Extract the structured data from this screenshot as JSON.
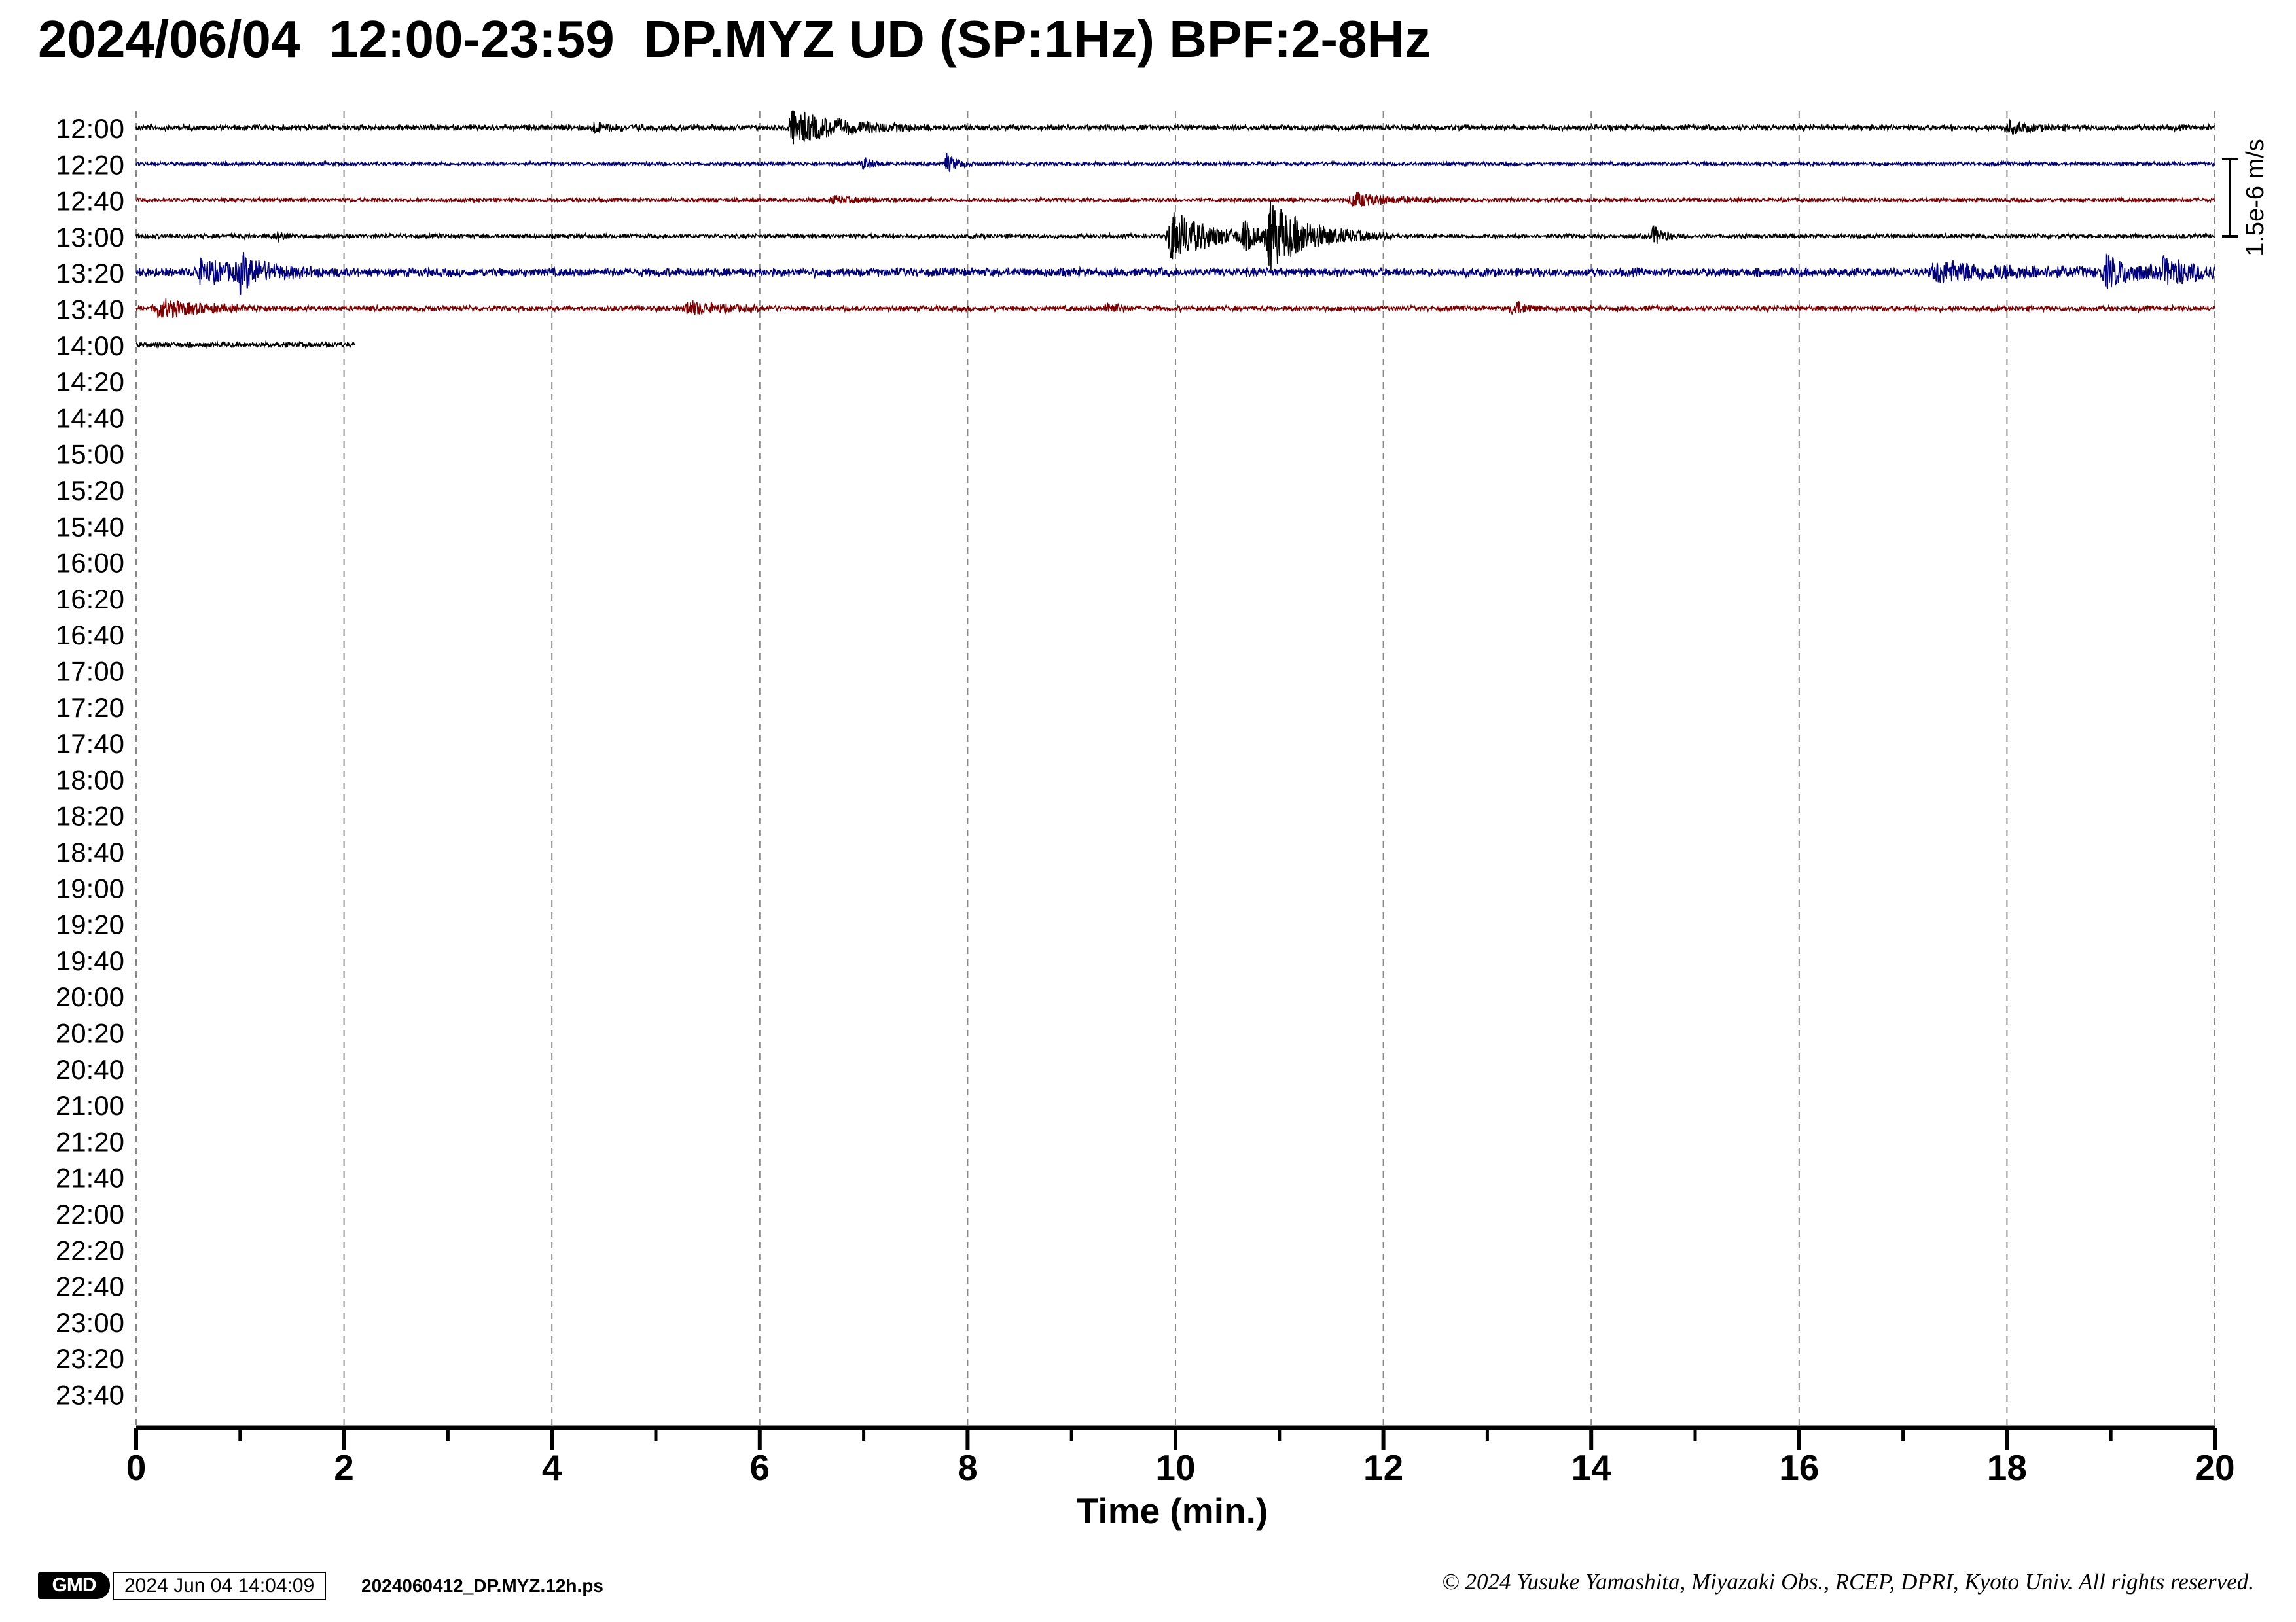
{
  "header": {
    "title": "2024/06/04  12:00-23:59  DP.MYZ UD (SP:1Hz) BPF:2-8Hz"
  },
  "footer": {
    "logo_text": "GMD",
    "timestamp": "2024 Jun 04 14:04:09",
    "filename": "2024060412_DP.MYZ.12h.ps",
    "copyright": "© 2024 Yusuke Yamashita, Miyazaki Obs., RCEP, DPRI, Kyoto Univ. All rights reserved."
  },
  "chart_data": {
    "type": "line",
    "xlabel": "Time (min.)",
    "xlim": [
      0,
      20
    ],
    "x_ticks_major": [
      0,
      2,
      4,
      6,
      8,
      10,
      12,
      14,
      16,
      18,
      20
    ],
    "x_ticks_minor_step": 1,
    "grid": "vertical dashed at major ticks",
    "row_labels": [
      "12:00",
      "12:20",
      "12:40",
      "13:00",
      "13:20",
      "13:40",
      "14:00",
      "14:20",
      "14:40",
      "15:00",
      "15:20",
      "15:40",
      "16:00",
      "16:20",
      "16:40",
      "17:00",
      "17:20",
      "17:40",
      "18:00",
      "18:20",
      "18:40",
      "19:00",
      "19:20",
      "19:40",
      "20:00",
      "20:20",
      "20:40",
      "21:00",
      "21:20",
      "21:40",
      "22:00",
      "22:20",
      "22:40",
      "23:00",
      "23:20",
      "23:40"
    ],
    "scale_bar_label": "1.5e-6 m/s",
    "trace_colors": [
      "#000000",
      "#000080",
      "#800000"
    ],
    "series": [
      {
        "row": "12:00",
        "color": "#000000",
        "end_min": 20,
        "noise": 0.14,
        "events": [
          {
            "t": 6.3,
            "amp": 1.0,
            "dur": 0.45
          },
          {
            "t": 18.0,
            "amp": 0.35,
            "dur": 0.2
          },
          {
            "t": 4.4,
            "amp": 0.25,
            "dur": 0.2
          }
        ]
      },
      {
        "row": "12:20",
        "color": "#000080",
        "end_min": 20,
        "noise": 0.09,
        "events": [
          {
            "t": 7.0,
            "amp": 0.4,
            "dur": 0.08
          },
          {
            "t": 7.8,
            "amp": 0.55,
            "dur": 0.1
          }
        ]
      },
      {
        "row": "12:40",
        "color": "#800000",
        "end_min": 20,
        "noise": 0.09,
        "events": [
          {
            "t": 11.7,
            "amp": 0.45,
            "dur": 0.35
          },
          {
            "t": 6.7,
            "amp": 0.2,
            "dur": 0.3
          }
        ]
      },
      {
        "row": "13:00",
        "color": "#000000",
        "end_min": 20,
        "noise": 0.11,
        "events": [
          {
            "t": 9.95,
            "amp": 1.6,
            "dur": 0.35
          },
          {
            "t": 10.9,
            "amp": 1.9,
            "dur": 0.4
          },
          {
            "t": 10.65,
            "amp": 0.7,
            "dur": 0.15
          },
          {
            "t": 14.6,
            "amp": 0.6,
            "dur": 0.1
          },
          {
            "t": 1.35,
            "amp": 0.3,
            "dur": 0.08
          }
        ]
      },
      {
        "row": "13:20",
        "color": "#000080",
        "end_min": 20,
        "noise": 0.22,
        "events": [
          {
            "t": 0.6,
            "amp": 0.6,
            "dur": 0.5
          },
          {
            "t": 1.0,
            "amp": 0.8,
            "dur": 0.2
          },
          {
            "t": 17.3,
            "amp": 0.55,
            "dur": 0.8
          },
          {
            "t": 18.95,
            "amp": 0.85,
            "dur": 0.25
          },
          {
            "t": 19.5,
            "amp": 0.6,
            "dur": 0.5
          }
        ]
      },
      {
        "row": "13:40",
        "color": "#800000",
        "end_min": 20,
        "noise": 0.14,
        "events": [
          {
            "t": 0.2,
            "amp": 0.55,
            "dur": 0.4
          },
          {
            "t": 5.3,
            "amp": 0.4,
            "dur": 0.3
          },
          {
            "t": 9.35,
            "amp": 0.4,
            "dur": 0.08
          },
          {
            "t": 13.25,
            "amp": 0.45,
            "dur": 0.1
          }
        ]
      },
      {
        "row": "14:00",
        "color": "#000000",
        "end_min": 2.1,
        "noise": 0.14,
        "events": []
      }
    ]
  }
}
